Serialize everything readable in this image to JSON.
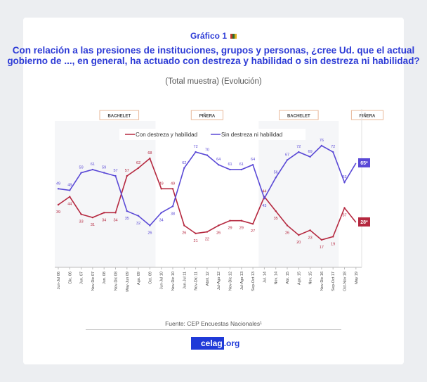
{
  "header": {
    "kicker": "Gráfico 1",
    "title": "Con relación a las presiones de instituciones, grupos y personas, ¿cree Ud. que el actual gobierno de ..., en general, ha actuado con destreza y habilidad o sin destreza ni habilidad?",
    "subtitle": "(Total muestra) (Evolución)"
  },
  "chart_data": {
    "type": "line",
    "title": "",
    "xlabel": "",
    "ylabel": "",
    "grid": false,
    "legend_position": "top-center",
    "categories": [
      "Jun-Jul 06",
      "Dic. 06",
      "Jun. 07",
      "Nov-Dic 07",
      "Jun. 08",
      "Nov-Dic 08",
      "May-Jun 09",
      "Ago. 09",
      "Oct. 09",
      "Jun-Jul 10",
      "Nov-Dic 10",
      "Jun-Jul 11",
      "Nov-Dic 11",
      "Abril. 12",
      "Jul-Ago 12",
      "Nov-Dic 12",
      "Jul-Ago 13",
      "Sep-Oct 13",
      "Jul. 14",
      "Nov. 14",
      "Abr. 15",
      "Ago. 15",
      "Nov. 15",
      "Nov-Dic 16",
      "Sep-Oct 17",
      "Oct-Nov 18",
      "May 19"
    ],
    "series": [
      {
        "name": "Con destreza y habilidad",
        "color": "#b5283f",
        "values": [
          39,
          44,
          33,
          31,
          34,
          34,
          57,
          62,
          68,
          49,
          49,
          26,
          21,
          22,
          26,
          29,
          29,
          27,
          44,
          35,
          26,
          20,
          23,
          17,
          19,
          37,
          28
        ]
      },
      {
        "name": "Sin destreza ni habilidad",
        "color": "#5a49d6",
        "values": [
          49,
          48,
          59,
          61,
          59,
          57,
          35,
          32,
          26,
          34,
          38,
          62,
          72,
          70,
          64,
          61,
          61,
          64,
          43,
          56,
          67,
          72,
          69,
          76,
          72,
          53,
          65
        ]
      }
    ],
    "final_badges": [
      "65*",
      "28*"
    ],
    "periods": [
      {
        "label": "BACHELET",
        "from": 0,
        "to": 8,
        "shaded": true
      },
      {
        "label": "PIÑERA",
        "from": 9,
        "to": 17,
        "shaded": false
      },
      {
        "label": "BACHELET",
        "from": 18,
        "to": 24,
        "shaded": true
      },
      {
        "label": "PIÑERA",
        "from": 25,
        "to": 26,
        "shaded": false
      }
    ]
  },
  "footer": {
    "source": "Fuente: CEP Encuestas Nacionales¹",
    "logo_main": "celag",
    "logo_suffix": ".org"
  }
}
